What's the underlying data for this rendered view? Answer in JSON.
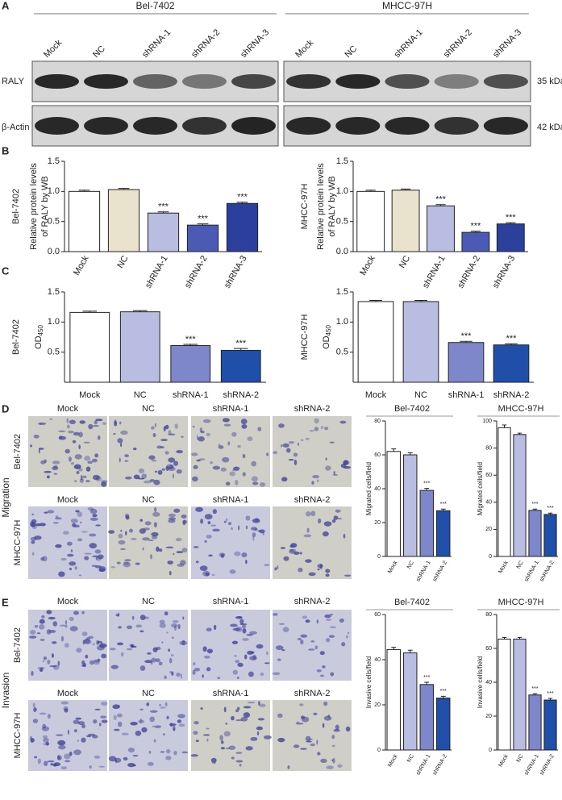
{
  "panel_letters": [
    "A",
    "B",
    "C",
    "D",
    "E"
  ],
  "blot": {
    "groups": [
      "Bel-7402",
      "MHCC-97H"
    ],
    "lanes": [
      "Mock",
      "NC",
      "shRNA-1",
      "shRNA-2",
      "shRNA-3"
    ],
    "proteins": [
      "RALY",
      "β-Actin"
    ],
    "sizes": [
      "35 kDa",
      "42 kDa"
    ]
  },
  "micrographs": {
    "columns": [
      "Mock",
      "NC",
      "shRNA-1",
      "shRNA-2"
    ],
    "rows": [
      "Bel-7402",
      "MHCC-97H"
    ],
    "assays": [
      "Migration",
      "Invasion"
    ]
  },
  "chart_data": [
    {
      "type": "bar",
      "row_label": "Bel-7402",
      "ylabel": [
        "Relative protein levels",
        "of RALY by WB"
      ],
      "categories": [
        "Mock",
        "NC",
        "shRNA-1",
        "shRNA-2",
        "shRNA-3"
      ],
      "values": [
        1.0,
        1.03,
        0.64,
        0.44,
        0.8
      ],
      "errors": [
        0.02,
        0.02,
        0.02,
        0.02,
        0.02
      ],
      "annotations": [
        null,
        null,
        "***",
        "***",
        "***"
      ],
      "colors": [
        "#ffffff",
        "#e9e2cc",
        "#b9bde2",
        "#4b5bb3",
        "#2b3f9d"
      ],
      "ylim": [
        0,
        1.5
      ],
      "yticks": [
        {
          "value": 0,
          "label": "0.0"
        },
        0.5,
        {
          "value": 1,
          "label": "1.0"
        },
        1.5
      ]
    },
    {
      "type": "bar",
      "row_label": "MHCC-97H",
      "ylabel": [
        "Relative protein levels",
        "of RALY by WB"
      ],
      "categories": [
        "Mock",
        "NC",
        "shRNA-1",
        "shRNA-2",
        "shRNA-3"
      ],
      "values": [
        1.0,
        1.02,
        0.76,
        0.32,
        0.46
      ],
      "errors": [
        0.02,
        0.02,
        0.02,
        0.02,
        0.02
      ],
      "annotations": [
        null,
        null,
        "***",
        "***",
        "***"
      ],
      "colors": [
        "#ffffff",
        "#e9e2cc",
        "#b9bde2",
        "#4b5bb3",
        "#2b3f9d"
      ],
      "ylim": [
        0,
        1.5
      ],
      "yticks": [
        {
          "value": 0,
          "label": "0.0"
        },
        0.5,
        {
          "value": 1,
          "label": "1.0"
        },
        1.5
      ]
    },
    {
      "type": "bar",
      "row_label": "Bel-7402",
      "ylabel": "OD",
      "ylabel_subscript": "450",
      "categories": [
        "Mock",
        "NC",
        "shRNA-1",
        "shRNA-2"
      ],
      "values": [
        1.16,
        1.17,
        0.61,
        0.53
      ],
      "errors": [
        0.02,
        0.02,
        0.02,
        0.03
      ],
      "annotations": [
        null,
        null,
        "***",
        "***"
      ],
      "colors": [
        "#ffffff",
        "#b9bde2",
        "#7e87c9",
        "#1f4fa8"
      ],
      "ylim": [
        0,
        1.5
      ],
      "yticks": [
        0.5,
        {
          "value": 1,
          "label": "1.0"
        },
        1.5
      ]
    },
    {
      "type": "bar",
      "row_label": "MHCC-97H",
      "ylabel": "OD",
      "ylabel_subscript": "450",
      "categories": [
        "Mock",
        "NC",
        "shRNA-1",
        "shRNA-2"
      ],
      "values": [
        1.34,
        1.34,
        0.66,
        0.62
      ],
      "errors": [
        0.02,
        0.02,
        0.02,
        0.02
      ],
      "annotations": [
        null,
        null,
        "***",
        "***"
      ],
      "colors": [
        "#ffffff",
        "#b9bde2",
        "#7e87c9",
        "#1f4fa8"
      ],
      "ylim": [
        0,
        1.5
      ],
      "yticks": [
        0.5,
        {
          "value": 1,
          "label": "1.0"
        },
        1.5
      ]
    },
    {
      "type": "bar",
      "title": "Bel-7402",
      "ylabel": "Migrated cells/field",
      "categories": [
        "Mock",
        "NC",
        "shRNA-1",
        "shRNA-2"
      ],
      "values": [
        62,
        60,
        39,
        27
      ],
      "errors": [
        1.5,
        1.2,
        1.2,
        1
      ],
      "annotations": [
        null,
        null,
        "***",
        "***"
      ],
      "colors": [
        "#ffffff",
        "#b9bde2",
        "#7e87c9",
        "#1f4fa8"
      ],
      "ylim": [
        0,
        80
      ],
      "yticks": [
        0,
        20,
        40,
        60,
        80
      ]
    },
    {
      "type": "bar",
      "title": "MHCC-97H",
      "ylabel": "Migrated cells/field",
      "categories": [
        "Mock",
        "NC",
        "shRNA-1",
        "shRNA-2"
      ],
      "values": [
        95,
        90,
        34,
        31
      ],
      "errors": [
        2,
        1,
        1,
        1
      ],
      "annotations": [
        null,
        null,
        "***",
        "***"
      ],
      "colors": [
        "#ffffff",
        "#b9bde2",
        "#7e87c9",
        "#1f4fa8"
      ],
      "ylim": [
        0,
        100
      ],
      "yticks": [
        0,
        20,
        40,
        60,
        80,
        100
      ]
    },
    {
      "type": "bar",
      "title": "Bel-7402",
      "ylabel": "Invasive cells/field",
      "categories": [
        "Mock",
        "NC",
        "shRNA-1",
        "shRNA-2"
      ],
      "values": [
        44.5,
        43,
        29,
        23
      ],
      "errors": [
        1,
        1.2,
        1,
        0.8
      ],
      "annotations": [
        null,
        null,
        "***",
        "***"
      ],
      "colors": [
        "#ffffff",
        "#b9bde2",
        "#7e87c9",
        "#1f4fa8"
      ],
      "ylim": [
        0,
        60
      ],
      "yticks": [
        0,
        20,
        40,
        60
      ]
    },
    {
      "type": "bar",
      "title": "MHCC-97H",
      "ylabel": "Invasive cells/field",
      "categories": [
        "Mock",
        "NC",
        "shRNA-1",
        "shRNA-2"
      ],
      "values": [
        65.5,
        65.5,
        32.5,
        29.5
      ],
      "errors": [
        1,
        1,
        0.8,
        1
      ],
      "annotations": [
        null,
        null,
        "***",
        "***"
      ],
      "colors": [
        "#ffffff",
        "#b9bde2",
        "#7e87c9",
        "#1f4fa8"
      ],
      "ylim": [
        0,
        80
      ],
      "yticks": [
        0,
        20,
        40,
        60,
        80
      ]
    }
  ]
}
